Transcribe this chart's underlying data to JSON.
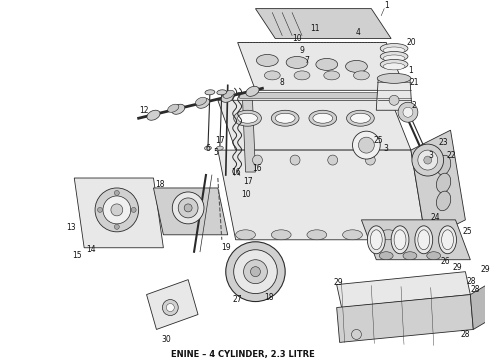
{
  "title": "ENINE – 4 CYLINDER, 2.3 LITRE",
  "title_fontsize": 6,
  "bg_color": "#ffffff",
  "fig_width": 4.9,
  "fig_height": 3.6,
  "dpi": 100,
  "line_color": "#2a2a2a",
  "fill_light": "#e8e8e8",
  "fill_mid": "#d0d0d0",
  "fill_dark": "#b8b8b8"
}
